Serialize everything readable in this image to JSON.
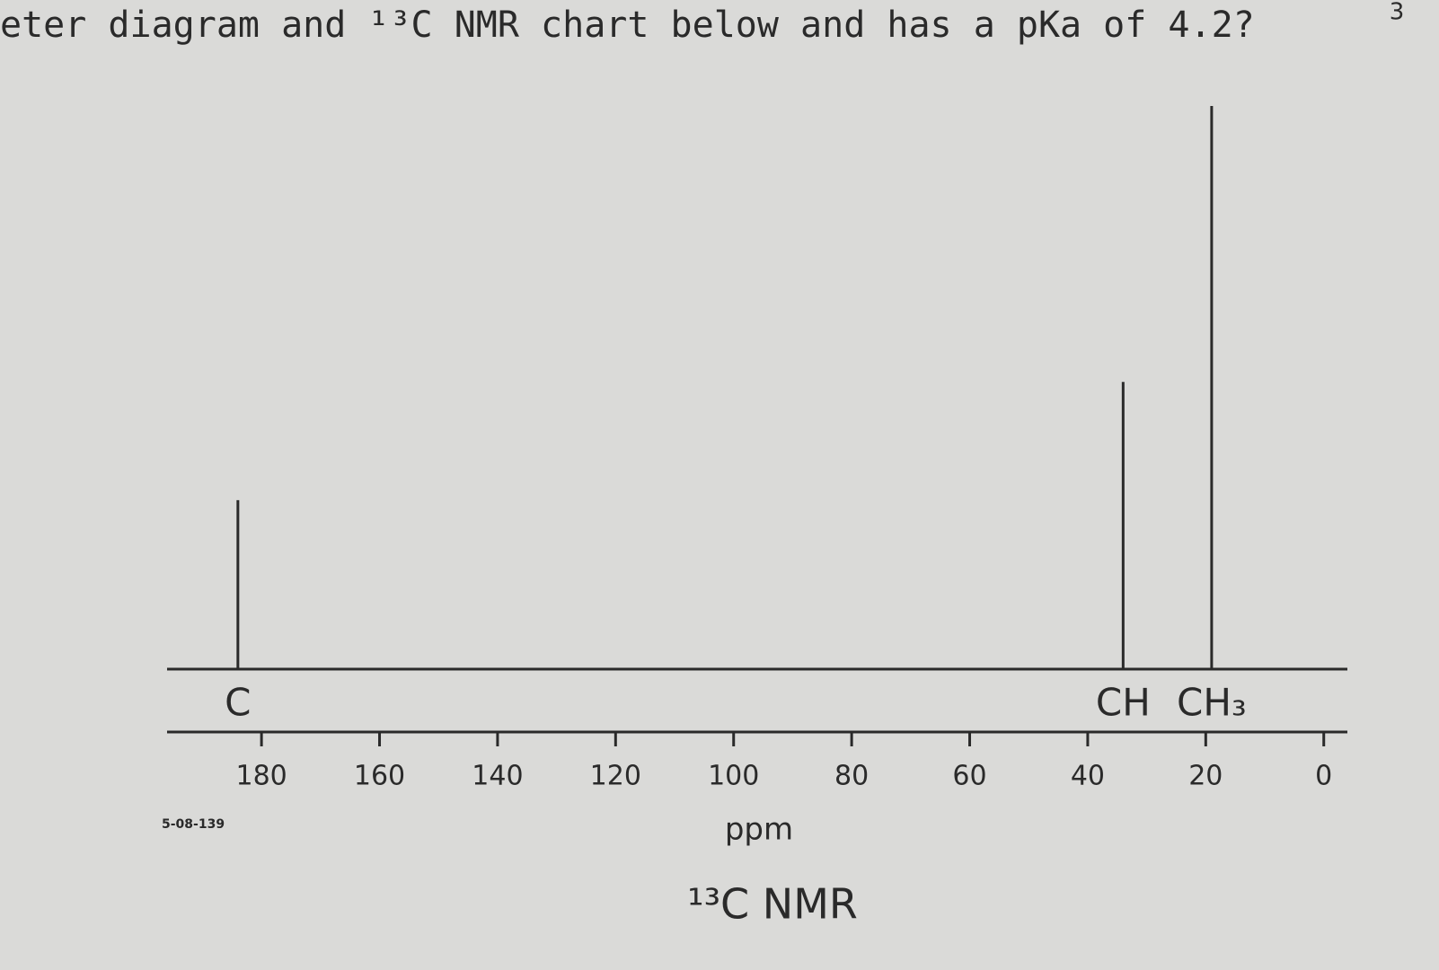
{
  "header": {
    "text": "eter diagram and ¹³C NMR chart below and has a pKa of 4.2?",
    "page_number": "3"
  },
  "chart_data": {
    "type": "stem",
    "title": "¹³C NMR",
    "xlabel": "ppm",
    "annotations": [
      "5-08-139"
    ],
    "x": [
      184,
      34,
      19
    ],
    "values": [
      30,
      51,
      100
    ],
    "labels": [
      "C",
      "CH",
      "CH₃"
    ],
    "color": "#2a2a2a",
    "xlim": [
      196,
      -4
    ],
    "xticks": [
      180,
      160,
      140,
      120,
      100,
      80,
      60,
      40,
      20,
      0
    ],
    "ylim": [
      0,
      100
    ]
  }
}
